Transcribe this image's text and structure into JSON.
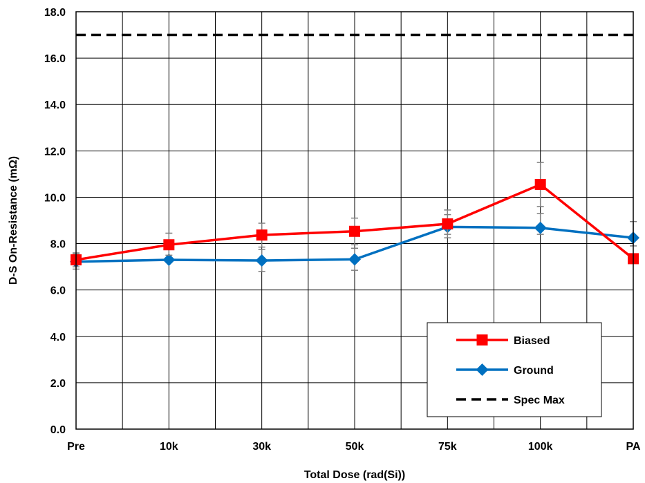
{
  "chart_data": {
    "type": "line",
    "title": "",
    "xlabel": "Total Dose (rad(Si))",
    "ylabel": "D-S On-Resistance (mΩ)",
    "categories": [
      "Pre",
      "10k",
      "30k",
      "50k",
      "75k",
      "100k",
      "PA"
    ],
    "ylim": [
      0,
      18
    ],
    "yticks": [
      "0.0",
      "2.0",
      "4.0",
      "6.0",
      "8.0",
      "10.0",
      "12.0",
      "14.0",
      "16.0",
      "18.0"
    ],
    "grid": true,
    "legend_position": "bottom-right",
    "series": [
      {
        "name": "Biased",
        "color": "#ff0000",
        "marker": "square",
        "values": [
          7.3,
          7.95,
          8.37,
          8.53,
          8.85,
          10.55,
          7.35
        ],
        "error_high": [
          7.6,
          8.45,
          8.88,
          9.1,
          9.45,
          11.5,
          7.35
        ],
        "error_low": [
          7.0,
          7.5,
          7.85,
          7.95,
          8.25,
          9.6,
          7.35
        ]
      },
      {
        "name": "Ground",
        "color": "#0070c0",
        "marker": "diamond",
        "values": [
          7.22,
          7.3,
          7.27,
          7.32,
          8.72,
          8.68,
          8.25
        ],
        "error_high": [
          7.55,
          7.3,
          7.75,
          7.8,
          9.25,
          9.3,
          8.95
        ],
        "error_low": [
          6.9,
          7.3,
          6.8,
          6.85,
          8.4,
          8.4,
          7.9
        ]
      },
      {
        "name": "Spec Max",
        "color": "#000000",
        "style": "dashed",
        "values": [
          17,
          17,
          17,
          17,
          17,
          17,
          17
        ]
      }
    ]
  }
}
